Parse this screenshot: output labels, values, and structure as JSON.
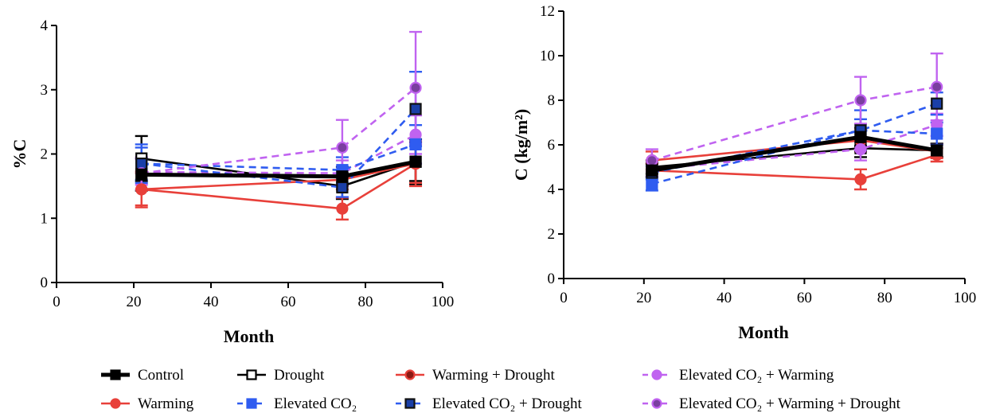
{
  "legend": [
    {
      "key": "control",
      "label": "Control",
      "color": "#000000",
      "dash": false,
      "marker": "square",
      "fill": "#000000"
    },
    {
      "key": "drought",
      "label": "Drought",
      "color": "#000000",
      "dash": false,
      "marker": "square-open",
      "fill": "#ffffff"
    },
    {
      "key": "warm_drought",
      "label": "Warming + Drought",
      "color": "#e8403a",
      "dash": false,
      "marker": "circle",
      "fill": "#8b1a14"
    },
    {
      "key": "eco2_warm",
      "label": "Elevated CO₂ + Warming",
      "color": "#c063f0",
      "dash": true,
      "marker": "circle",
      "fill": "#c063f0"
    },
    {
      "key": "warming",
      "label": "Warming",
      "color": "#e8403a",
      "dash": false,
      "marker": "circle",
      "fill": "#e8403a"
    },
    {
      "key": "eco2",
      "label": "Elevated CO₂",
      "color": "#2f5cf0",
      "dash": true,
      "marker": "square",
      "fill": "#2f5cf0"
    },
    {
      "key": "eco2_drought",
      "label": "Elevated CO₂ + Drought",
      "color": "#2f5cf0",
      "dash": true,
      "marker": "square",
      "fill": "#1a3fa8"
    },
    {
      "key": "eco2_warm_drought",
      "label": "Elevated CO₂ + Warming + Drought",
      "color": "#c063f0",
      "dash": true,
      "marker": "circle",
      "fill": "#7a3fa0"
    }
  ],
  "chart_data": [
    {
      "type": "line",
      "xlabel": "Month",
      "ylabel": "%C",
      "xlim": [
        0,
        100
      ],
      "ylim": [
        0,
        4
      ],
      "xticks": [
        0,
        20,
        40,
        60,
        80,
        100
      ],
      "yticks": [
        0,
        1,
        2,
        3,
        4
      ],
      "x": [
        22,
        74,
        93
      ],
      "series": [
        {
          "key": "control",
          "values": [
            1.68,
            1.65,
            1.88
          ],
          "err": [
            0.25,
            0.15,
            0.3
          ]
        },
        {
          "key": "drought",
          "values": [
            1.93,
            1.5,
            1.88
          ],
          "err": [
            0.35,
            0.2,
            0.35
          ]
        },
        {
          "key": "warm_drought",
          "values": [
            1.45,
            1.6,
            1.85
          ],
          "err": [
            0.25,
            0.15,
            0.3
          ]
        },
        {
          "key": "eco2_warm",
          "values": [
            1.72,
            1.7,
            2.3
          ],
          "err": [
            0.2,
            0.2,
            0.3
          ]
        },
        {
          "key": "warming",
          "values": [
            1.45,
            1.15,
            1.85
          ],
          "err": [
            0.28,
            0.17,
            0.35
          ]
        },
        {
          "key": "eco2",
          "values": [
            1.85,
            1.75,
            2.15
          ],
          "err": [
            0.25,
            0.2,
            0.3
          ]
        },
        {
          "key": "eco2_drought",
          "values": [
            1.85,
            1.48,
            2.7
          ],
          "err": [
            0.3,
            0.15,
            0.58
          ]
        },
        {
          "key": "eco2_warm_drought",
          "values": [
            1.7,
            2.1,
            3.03
          ],
          "err": [
            0.25,
            0.43,
            0.87
          ]
        }
      ]
    },
    {
      "type": "line",
      "xlabel": "Month",
      "ylabel": "C (kg/m²)",
      "xlim": [
        0,
        100
      ],
      "ylim": [
        0,
        12
      ],
      "xticks": [
        0,
        20,
        40,
        60,
        80,
        100
      ],
      "yticks": [
        0,
        2,
        4,
        6,
        8,
        10,
        12
      ],
      "x": [
        22,
        74,
        93
      ],
      "series": [
        {
          "key": "control",
          "values": [
            4.85,
            6.35,
            5.75
          ],
          "err": [
            0.3,
            0.4,
            0.3
          ]
        },
        {
          "key": "drought",
          "values": [
            5.0,
            5.85,
            5.75
          ],
          "err": [
            0.3,
            0.4,
            0.3
          ]
        },
        {
          "key": "warm_drought",
          "values": [
            5.3,
            6.2,
            5.7
          ],
          "err": [
            0.4,
            0.5,
            0.3
          ]
        },
        {
          "key": "eco2_warm",
          "values": [
            4.9,
            5.8,
            6.9
          ],
          "err": [
            0.3,
            0.5,
            0.5
          ]
        },
        {
          "key": "warming",
          "values": [
            4.85,
            4.45,
            5.55
          ],
          "err": [
            0.3,
            0.45,
            0.3
          ]
        },
        {
          "key": "eco2",
          "values": [
            4.25,
            6.65,
            6.5
          ],
          "err": [
            0.3,
            0.5,
            0.5
          ]
        },
        {
          "key": "eco2_drought",
          "values": [
            4.75,
            6.65,
            7.85
          ],
          "err": [
            0.3,
            0.9,
            0.5
          ]
        },
        {
          "key": "eco2_warm_drought",
          "values": [
            5.3,
            8.0,
            8.6
          ],
          "err": [
            0.5,
            1.05,
            1.5
          ]
        }
      ]
    }
  ]
}
